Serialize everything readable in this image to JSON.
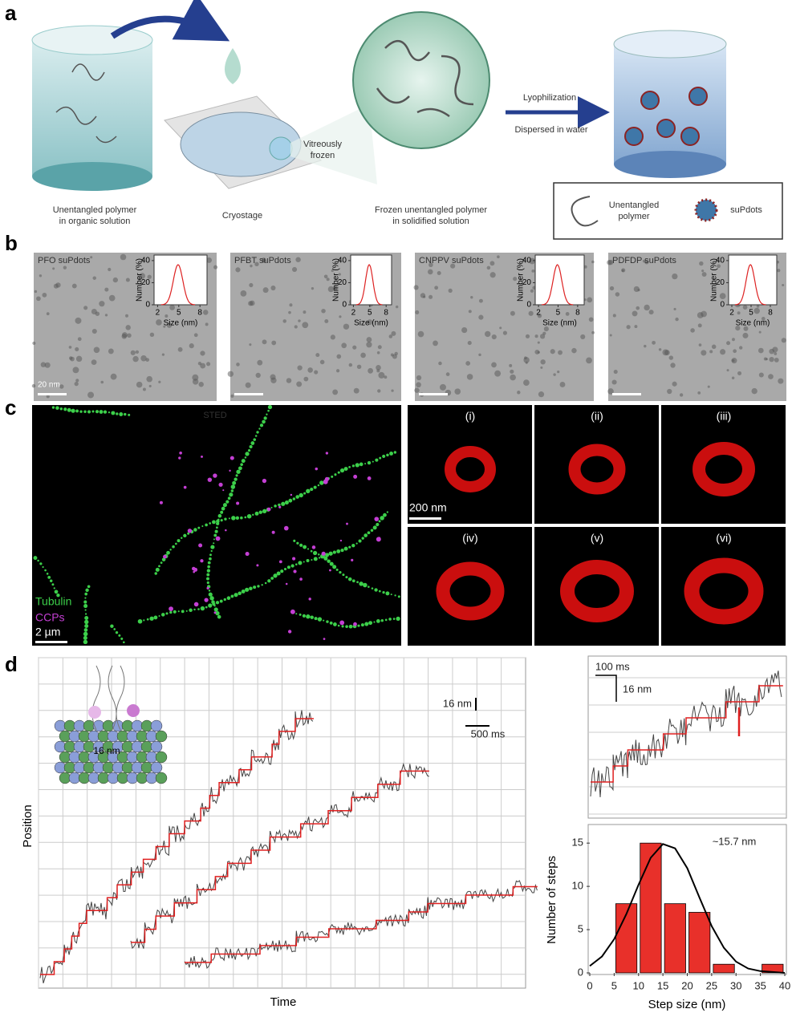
{
  "panel_a": {
    "label": "a",
    "steps": [
      {
        "lines": [
          "Unentangled polymer",
          "in organic solution"
        ]
      },
      {
        "lines": [
          "Cryostage"
        ]
      },
      {
        "lines": [
          "Frozen unentangled polymer",
          "in solidified solution"
        ]
      }
    ],
    "bubble": [
      "Vitreously",
      "frozen"
    ],
    "arrow_top": "Lyophilization",
    "arrow_bottom": "Dispersed in water",
    "legend": [
      {
        "lines": [
          "Unentangled",
          "polymer"
        ]
      },
      {
        "lines": [
          "suPdots"
        ]
      }
    ]
  },
  "panel_b": {
    "label": "b",
    "inset_y_label": "Number (%)",
    "inset_x_label": "Size (nm)",
    "inset_ylim": [
      0,
      45
    ],
    "inset_yticks": [
      0,
      20,
      40
    ],
    "inset_xlim": [
      1.5,
      9
    ],
    "inset_xticks": [
      2,
      5,
      8
    ],
    "images": [
      {
        "label": "PFO suPdots"
      },
      {
        "label": "PFBT suPdots"
      },
      {
        "label": "CNPPV suPdots"
      },
      {
        "label": "PDFDP suPdots"
      }
    ],
    "scale_bar": "20 nm"
  },
  "panel_c": {
    "label": "c",
    "main": {
      "title": "STED",
      "legend": [
        "Tubulin",
        "CCPs"
      ],
      "scale_bar": "2 µm"
    },
    "tiles": [
      "(i)",
      "(ii)",
      "(iii)",
      "(iv)",
      "(v)",
      "(vi)"
    ],
    "tile_scale_bar": "200 nm"
  },
  "panel_d": {
    "label": "d",
    "trace": {
      "x_label": "Time",
      "y_label": "Position",
      "inset_label": "16 nm",
      "scale_y": "16 nm",
      "scale_x": "500 ms"
    },
    "zoom": {
      "scale_x": "100 ms",
      "scale_y": "16 nm"
    },
    "histogram": {
      "type": "bar",
      "bins": [
        5,
        10,
        15,
        20,
        25,
        30,
        35,
        40
      ],
      "values": [
        8,
        15,
        8,
        7,
        1,
        0,
        1
      ],
      "color": "#e8302a",
      "xlim": [
        0,
        40
      ],
      "ylim": [
        0,
        16.5
      ],
      "xticks": [
        0,
        5,
        10,
        15,
        20,
        25,
        30,
        35,
        40
      ],
      "yticks": [
        0,
        5,
        10,
        15
      ],
      "x_label": "Step size (nm)",
      "y_label": "Number of steps",
      "annotation": "~15.7 nm",
      "curve": {
        "x": [
          0,
          2.5,
          5,
          7.5,
          10,
          12.5,
          15,
          17.5,
          20,
          22.5,
          25,
          27.5,
          30,
          32.5,
          35,
          37.5,
          40
        ],
        "values": [
          0.8,
          1.9,
          3.9,
          6.8,
          10.2,
          13.3,
          14.9,
          14.4,
          12.1,
          8.7,
          5.4,
          2.9,
          1.3,
          0.5,
          0.2,
          0.1,
          0
        ],
        "color": "#000000"
      }
    }
  }
}
